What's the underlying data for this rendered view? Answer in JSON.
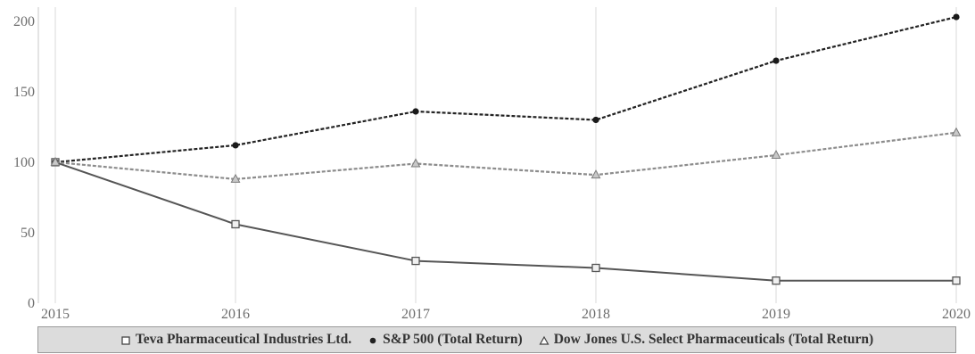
{
  "chart_data": {
    "type": "line",
    "title": "",
    "xlabel": "",
    "ylabel": "",
    "x": [
      "2015",
      "2016",
      "2017",
      "2018",
      "2019",
      "2020"
    ],
    "ylim": [
      0,
      210
    ],
    "yticks": [
      0,
      50,
      100,
      150,
      200
    ],
    "grid": {
      "vertical": true,
      "horizontal": false
    },
    "legend_position": "bottom",
    "series": [
      {
        "name": "Teva Pharmaceutical Industries Ltd.",
        "values": [
          100,
          56,
          30,
          25,
          16,
          16
        ],
        "marker": "square",
        "line_style": "solid",
        "color": "#555555"
      },
      {
        "name": "S&P 500 (Total Return)",
        "values": [
          100,
          112,
          136,
          130,
          172,
          203
        ],
        "marker": "circle",
        "line_style": "dashed",
        "color": "#222222"
      },
      {
        "name": "Dow Jones U.S. Select Pharmaceuticals (Total Return)",
        "values": [
          100,
          88,
          99,
          91,
          105,
          121
        ],
        "marker": "triangle",
        "line_style": "dashed",
        "color": "#8c8c8c"
      }
    ]
  }
}
